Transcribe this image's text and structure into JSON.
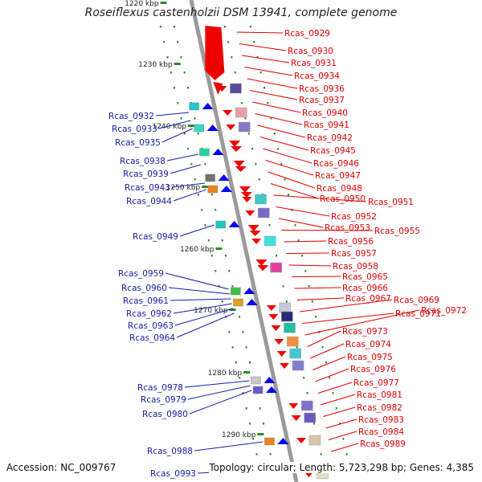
{
  "title": "Roseiflexus castenholzii DSM 13941, complete genome",
  "accession": "Accession: NC_009767",
  "footer": "Topology: circular; Length: 5,723,298 bp; Genes: 4,385",
  "colors": {
    "right_label": "#e00000",
    "left_label": "#1a1aa8",
    "axis": "#9a9a9a",
    "tick": "#2a8a2a"
  },
  "ticks": [
    {
      "kbp": 1220,
      "label": "1220 kbp"
    },
    {
      "kbp": 1230,
      "label": "1230 kbp"
    },
    {
      "kbp": 1240,
      "label": "1240 kbp"
    },
    {
      "kbp": 1250,
      "label": "1250 kbp"
    },
    {
      "kbp": 1260,
      "label": "1260 kbp"
    },
    {
      "kbp": 1270,
      "label": "1270 kbp"
    },
    {
      "kbp": 1280,
      "label": "1280 kbp"
    },
    {
      "kbp": 1290,
      "label": "1290 kbp"
    }
  ],
  "right_labels": [
    "Rcas_0929",
    "Rcas_0930",
    "Rcas_0931",
    "Rcas_0934",
    "Rcas_0936",
    "Rcas_0937",
    "Rcas_0940",
    "Rcas_0941",
    "Rcas_0942",
    "Rcas_0945",
    "Rcas_0946",
    "Rcas_0947",
    "Rcas_0948",
    "Rcas_0950",
    "Rcas_0951",
    "Rcas_0952",
    "Rcas_0953",
    "Rcas_0955",
    "Rcas_0956",
    "Rcas_0957",
    "Rcas_0958",
    "Rcas_0965",
    "Rcas_0966",
    "Rcas_0967",
    "Rcas_0969",
    "Rcas_0971",
    "Rcas_0972",
    "Rcas_0973",
    "Rcas_0974",
    "Rcas_0975",
    "Rcas_0976",
    "Rcas_0977",
    "Rcas_0981",
    "Rcas_0982",
    "Rcas_0983",
    "Rcas_0984",
    "Rcas_0989"
  ],
  "left_labels": [
    "Rcas_0932",
    "Rcas_0933",
    "Rcas_0935",
    "Rcas_0938",
    "Rcas_0939",
    "Rcas_0943",
    "Rcas_0944",
    "Rcas_0949",
    "Rcas_0959",
    "Rcas_0960",
    "Rcas_0961",
    "Rcas_0962",
    "Rcas_0963",
    "Rcas_0964",
    "Rcas_0978",
    "Rcas_0979",
    "Rcas_0980",
    "Rcas_0988",
    "Rcas_0993"
  ]
}
